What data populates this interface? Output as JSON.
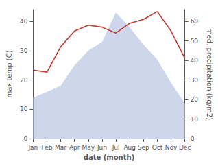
{
  "chart_data": {
    "type": "area",
    "categories": [
      "Jan",
      "Feb",
      "Mar",
      "Apr",
      "May",
      "Jun",
      "Jul",
      "Aug",
      "Sep",
      "Oct",
      "Nov",
      "Dec"
    ],
    "series": [
      {
        "type": "area",
        "color": "#c5cfe8",
        "values": [
          14,
          16,
          18,
          25,
          30,
          33,
          43,
          38,
          32,
          27,
          19,
          12
        ]
      },
      {
        "type": "line",
        "color": "#c0392b",
        "axis": "y2",
        "values": [
          35,
          34,
          47,
          55,
          58,
          57,
          54,
          59,
          61,
          65,
          55,
          41
        ]
      }
    ],
    "xlabel": "date (month)",
    "ylabel": "max temp (C)",
    "y2label": "med. precipitation (kg/m2)",
    "ylim": [
      0,
      44
    ],
    "yticks": [
      0,
      10,
      20,
      30,
      40
    ],
    "y2lim": [
      0,
      66
    ],
    "y2ticks": [
      0,
      10,
      20,
      30,
      40,
      50,
      60
    ],
    "grid": false
  }
}
